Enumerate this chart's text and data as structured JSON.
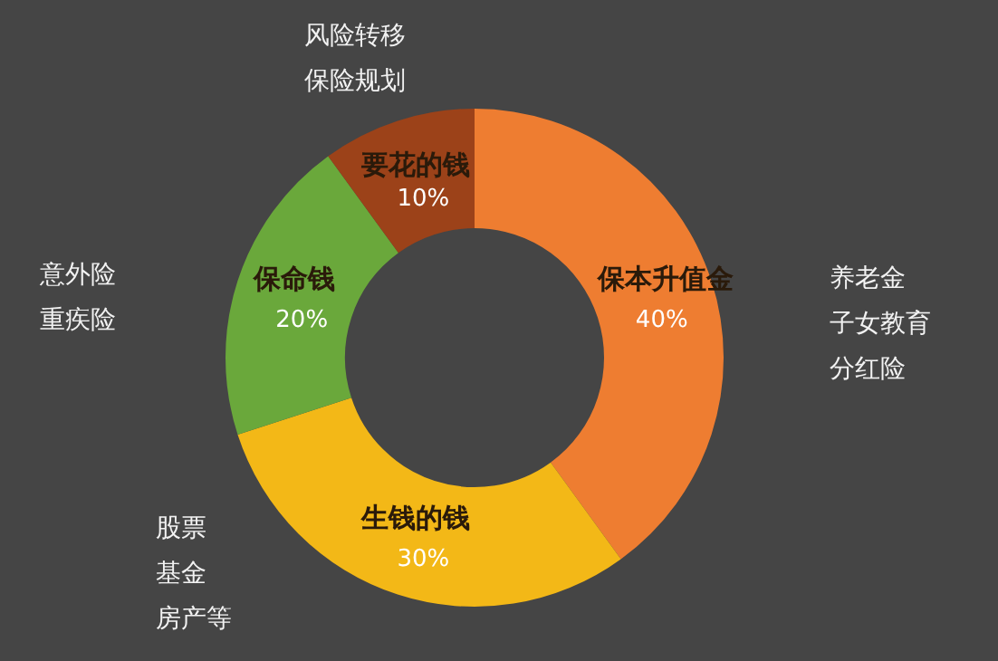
{
  "chart_data": {
    "type": "donut",
    "categories": [
      "保本升值金",
      "生钱的钱",
      "保命钱",
      "要花的钱"
    ],
    "values": [
      40,
      30,
      20,
      10
    ],
    "value_labels": [
      "40%",
      "30%",
      "20%",
      "10%"
    ],
    "colors": [
      "#ee7d31",
      "#f3b817",
      "#6aa83b",
      "#9c4219"
    ],
    "legend": false,
    "annotations": [
      "风险转移",
      "保险规划",
      "意外险",
      "重疾险",
      "养老金",
      "子女教育",
      "分红险",
      "股票",
      "基金",
      "房产等"
    ]
  }
}
